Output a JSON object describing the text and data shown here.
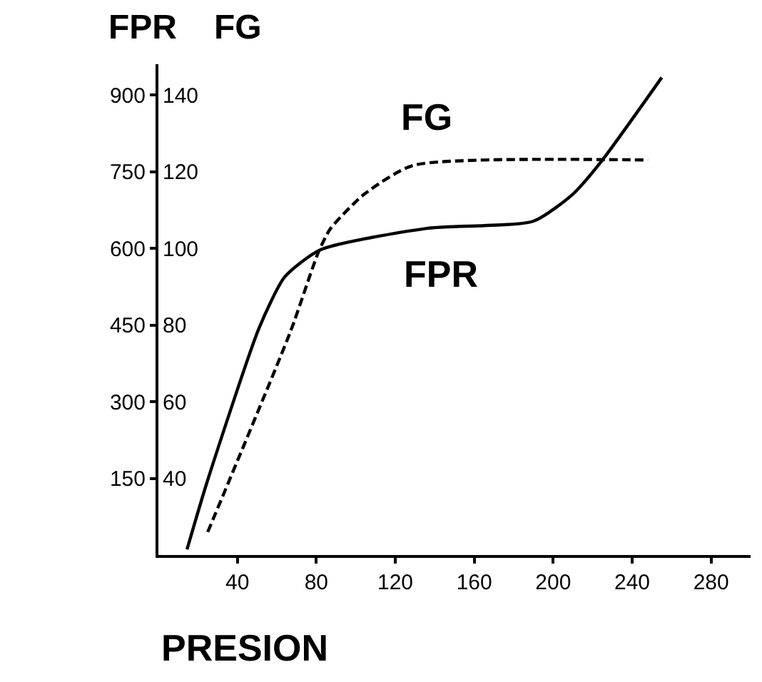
{
  "chart_data": {
    "type": "line",
    "ylabel": "FPR",
    "y2label": "FG",
    "xlabel": "PRESION",
    "xlim": [
      0,
      300
    ],
    "xticks": [
      40,
      80,
      120,
      160,
      200,
      240,
      280
    ],
    "ylim": [
      0,
      960
    ],
    "yticks": [
      150,
      300,
      450,
      600,
      750,
      900
    ],
    "y2lim": [
      20,
      148
    ],
    "y2ticks": [
      40,
      60,
      80,
      100,
      120,
      140
    ],
    "legend": false,
    "marker": "none",
    "series": [
      {
        "name": "FG",
        "color": "#000000",
        "axis": "y2",
        "line_style": "dashed",
        "x": [
          25,
          67,
          81,
          87,
          104,
          129,
          248
        ],
        "values": [
          26,
          78.4,
          98.9,
          105,
          114,
          121.6,
          123
        ]
      },
      {
        "name": "FPR",
        "color": "#000000",
        "line_style": "solid",
        "x": [
          14.5,
          24.6,
          51,
          64,
          82,
          136,
          190,
          210,
          225,
          255
        ],
        "values": [
          11,
          142,
          444,
          544,
          597,
          639,
          653,
          706,
          773,
          934
        ]
      }
    ]
  }
}
